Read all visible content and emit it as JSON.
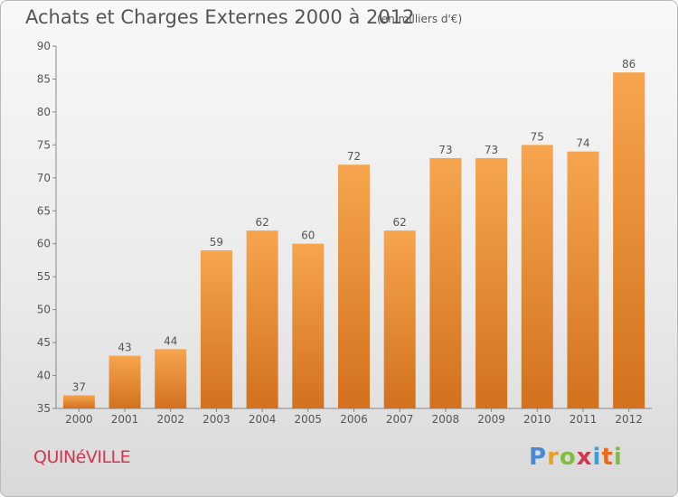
{
  "title": "Achats et Charges Externes 2000 à 2012",
  "unit": "(en milliers d'€)",
  "commune": "QUINéVILLE",
  "logo": {
    "letters": [
      "P",
      "r",
      "o",
      "x",
      "i",
      "t",
      "i"
    ],
    "colors": [
      "#4a8ad4",
      "#e8a020",
      "#7fbf3f",
      "#d2374e",
      "#3aa0d8",
      "#e86a20",
      "#7fbf3f"
    ]
  },
  "colors": {
    "bar_top": "#f6a54e",
    "bar_bottom": "#d3711d",
    "axis": "#888888",
    "text": "#555555"
  },
  "chart_data": {
    "type": "bar",
    "title": "Achats et Charges Externes 2000 à 2012",
    "subtitle": "(en milliers d'€)",
    "categories": [
      "2000",
      "2001",
      "2002",
      "2003",
      "2004",
      "2005",
      "2006",
      "2007",
      "2008",
      "2009",
      "2010",
      "2011",
      "2012"
    ],
    "values": [
      37,
      43,
      44,
      59,
      62,
      60,
      72,
      62,
      73,
      73,
      75,
      74,
      86
    ],
    "ylim": [
      35,
      90
    ],
    "yticks": [
      35,
      40,
      45,
      50,
      55,
      60,
      65,
      70,
      75,
      80,
      85,
      90
    ],
    "grid": false,
    "data_labels": true
  }
}
